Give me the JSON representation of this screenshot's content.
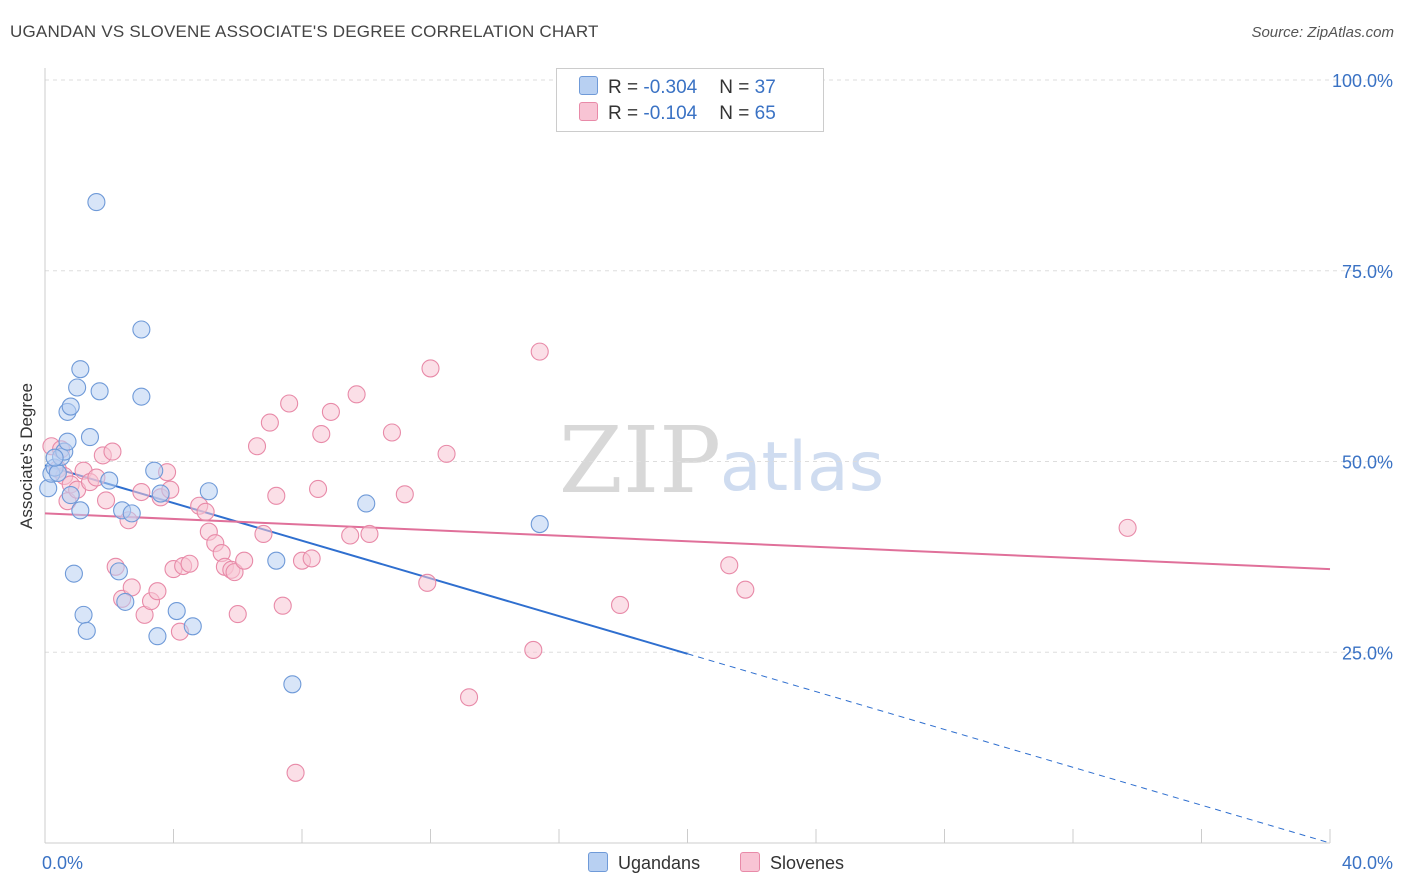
{
  "title": "UGANDAN VS SLOVENE ASSOCIATE'S DEGREE CORRELATION CHART",
  "source": "Source: ZipAtlas.com",
  "colors": {
    "blue_fill": "#b8d0f2",
    "blue_stroke": "#6f9ad8",
    "blue_line": "#2f6fcf",
    "pink_fill": "#f8c4d4",
    "pink_stroke": "#e88aa8",
    "pink_line": "#e0709a",
    "axis_text": "#3a72c4"
  },
  "legend": {
    "row1": {
      "r_label": "R = ",
      "r_value": "-0.304",
      "n_label": "N = ",
      "n_value": "37"
    },
    "row2": {
      "r_label": "R = ",
      "r_value": "-0.104",
      "n_label": "N = ",
      "n_value": "65"
    }
  },
  "watermark": {
    "zip": "ZIP",
    "atlas": "atlas"
  },
  "chart_data": {
    "type": "scatter",
    "title": "UGANDAN VS SLOVENE ASSOCIATE'S DEGREE CORRELATION CHART",
    "xlabel": "",
    "ylabel": "Associate's Degree",
    "xlim": [
      0,
      40
    ],
    "ylim": [
      0,
      100
    ],
    "x_tick_labels": [
      "0.0%",
      "40.0%"
    ],
    "y_ticks": [
      25,
      50,
      75,
      100
    ],
    "y_tick_labels": [
      "25.0%",
      "50.0%",
      "75.0%",
      "100.0%"
    ],
    "grid": true,
    "legend_entries": [
      "Ugandans",
      "Slovenes"
    ],
    "series": [
      {
        "name": "Ugandans",
        "color": "#b8d0f2",
        "points": [
          [
            0.1,
            46.5
          ],
          [
            0.2,
            48.4
          ],
          [
            0.3,
            49.2
          ],
          [
            0.4,
            48.5
          ],
          [
            0.5,
            50.6
          ],
          [
            0.6,
            51.3
          ],
          [
            0.7,
            52.6
          ],
          [
            0.8,
            45.6
          ],
          [
            0.7,
            56.5
          ],
          [
            0.8,
            57.2
          ],
          [
            0.9,
            35.3
          ],
          [
            1.0,
            59.7
          ],
          [
            1.1,
            62.1
          ],
          [
            1.1,
            43.6
          ],
          [
            1.2,
            29.9
          ],
          [
            1.3,
            27.8
          ],
          [
            1.4,
            53.2
          ],
          [
            1.7,
            59.2
          ],
          [
            1.6,
            84.0
          ],
          [
            2.0,
            47.5
          ],
          [
            2.3,
            35.6
          ],
          [
            2.5,
            31.6
          ],
          [
            2.4,
            43.6
          ],
          [
            2.7,
            43.2
          ],
          [
            3.0,
            58.5
          ],
          [
            3.0,
            67.3
          ],
          [
            3.4,
            48.8
          ],
          [
            3.5,
            27.1
          ],
          [
            3.6,
            45.8
          ],
          [
            4.1,
            30.4
          ],
          [
            4.6,
            28.4
          ],
          [
            5.1,
            46.1
          ],
          [
            7.2,
            37.0
          ],
          [
            7.7,
            20.8
          ],
          [
            10.0,
            44.5
          ],
          [
            15.4,
            41.8
          ],
          [
            0.3,
            50.5
          ]
        ],
        "trend": {
          "x0": 0,
          "y0": 49.5,
          "x1": 20,
          "y1": 24.8,
          "dashed_to_x": 40,
          "dashed_to_y": 0
        }
      },
      {
        "name": "Slovenes",
        "color": "#f8c4d4",
        "points": [
          [
            0.2,
            52.0
          ],
          [
            0.4,
            49.0
          ],
          [
            0.5,
            51.6
          ],
          [
            0.6,
            48.1
          ],
          [
            0.7,
            44.8
          ],
          [
            0.8,
            47.0
          ],
          [
            1.0,
            46.3
          ],
          [
            1.2,
            48.8
          ],
          [
            1.4,
            47.3
          ],
          [
            1.6,
            47.9
          ],
          [
            1.8,
            50.8
          ],
          [
            1.9,
            44.9
          ],
          [
            2.1,
            51.3
          ],
          [
            2.2,
            36.2
          ],
          [
            2.4,
            32.0
          ],
          [
            2.6,
            42.3
          ],
          [
            2.7,
            33.5
          ],
          [
            3.0,
            46.0
          ],
          [
            3.1,
            29.9
          ],
          [
            3.3,
            31.7
          ],
          [
            3.5,
            33.0
          ],
          [
            3.6,
            45.3
          ],
          [
            3.8,
            48.6
          ],
          [
            3.9,
            46.3
          ],
          [
            4.0,
            35.9
          ],
          [
            4.2,
            27.7
          ],
          [
            4.3,
            36.3
          ],
          [
            4.5,
            36.6
          ],
          [
            4.8,
            44.2
          ],
          [
            5.0,
            43.4
          ],
          [
            5.1,
            40.8
          ],
          [
            5.3,
            39.3
          ],
          [
            5.5,
            38.0
          ],
          [
            5.6,
            36.2
          ],
          [
            5.8,
            35.8
          ],
          [
            5.9,
            35.5
          ],
          [
            6.0,
            30.0
          ],
          [
            6.2,
            37.0
          ],
          [
            6.6,
            52.0
          ],
          [
            6.8,
            40.5
          ],
          [
            7.0,
            55.1
          ],
          [
            7.2,
            45.5
          ],
          [
            7.4,
            31.1
          ],
          [
            7.6,
            57.6
          ],
          [
            7.8,
            9.2
          ],
          [
            8.0,
            37.0
          ],
          [
            8.3,
            37.3
          ],
          [
            8.5,
            46.4
          ],
          [
            8.6,
            53.6
          ],
          [
            8.9,
            56.5
          ],
          [
            9.5,
            40.3
          ],
          [
            9.7,
            58.8
          ],
          [
            10.1,
            40.5
          ],
          [
            10.8,
            53.8
          ],
          [
            11.2,
            45.7
          ],
          [
            11.9,
            34.1
          ],
          [
            12.0,
            62.2
          ],
          [
            12.5,
            51.0
          ],
          [
            13.2,
            19.1
          ],
          [
            15.2,
            25.3
          ],
          [
            15.4,
            64.4
          ],
          [
            17.9,
            31.2
          ],
          [
            21.3,
            36.4
          ],
          [
            21.8,
            33.2
          ],
          [
            33.7,
            41.3
          ]
        ],
        "trend": {
          "x0": 0,
          "y0": 43.2,
          "x1": 40,
          "y1": 35.9
        }
      }
    ]
  },
  "bottom_legend": {
    "ugandans": "Ugandans",
    "slovenes": "Slovenes"
  }
}
